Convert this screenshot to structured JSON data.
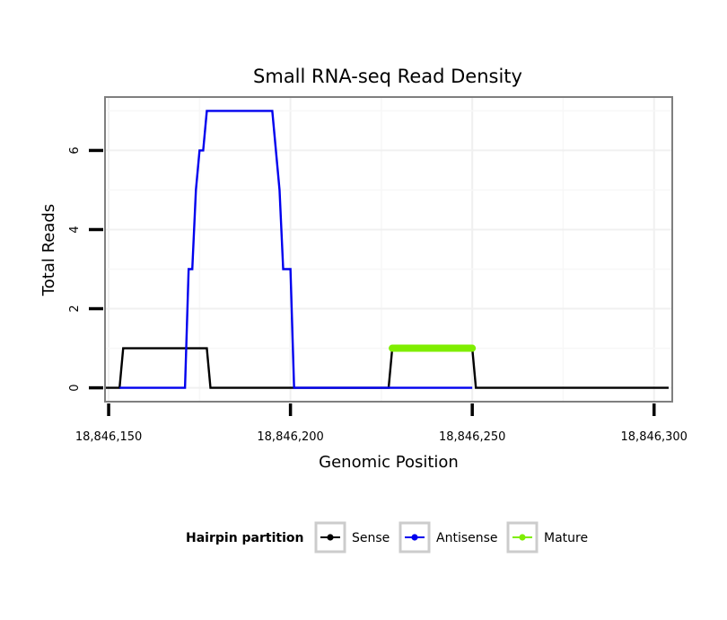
{
  "chart_data": {
    "type": "line",
    "title": "Small RNA-seq Read Density",
    "xlabel": "Genomic Position",
    "ylabel": "Total Reads",
    "xlim": [
      18846149,
      18846305
    ],
    "ylim": [
      -0.35,
      7.35
    ],
    "x_ticks": [
      18846150,
      18846200,
      18846250,
      18846300
    ],
    "x_tick_labels": [
      "18,846,150",
      "18,846,200",
      "18,846,250",
      "18,846,300"
    ],
    "y_ticks": [
      0,
      2,
      4,
      6
    ],
    "y_tick_labels": [
      "0",
      "2",
      "4",
      "6"
    ],
    "grid": true,
    "legend": {
      "title": "Hairpin partition",
      "placement": "bottom",
      "entries": [
        "Sense",
        "Antisense",
        "Mature"
      ]
    },
    "series": [
      {
        "name": "Sense",
        "color": "#000000",
        "points": [
          [
            18846149,
            0
          ],
          [
            18846153,
            0
          ],
          [
            18846154,
            1
          ],
          [
            18846177,
            1
          ],
          [
            18846178,
            0
          ],
          [
            18846227,
            0
          ],
          [
            18846228,
            1
          ],
          [
            18846250,
            1
          ],
          [
            18846251,
            0
          ],
          [
            18846304,
            0
          ]
        ]
      },
      {
        "name": "Antisense",
        "color": "#0000ee",
        "points": [
          [
            18846153,
            0
          ],
          [
            18846171,
            0
          ],
          [
            18846172,
            3
          ],
          [
            18846173,
            3
          ],
          [
            18846174,
            5
          ],
          [
            18846175,
            6
          ],
          [
            18846176,
            6
          ],
          [
            18846177,
            7
          ],
          [
            18846195,
            7
          ],
          [
            18846197,
            5
          ],
          [
            18846198,
            3
          ],
          [
            18846200,
            3
          ],
          [
            18846201,
            0
          ],
          [
            18846228,
            0
          ],
          [
            18846250,
            0
          ]
        ]
      },
      {
        "name": "Mature",
        "color": "#7fee00",
        "points": [
          [
            18846228,
            1
          ],
          [
            18846250,
            1
          ]
        ]
      }
    ]
  }
}
